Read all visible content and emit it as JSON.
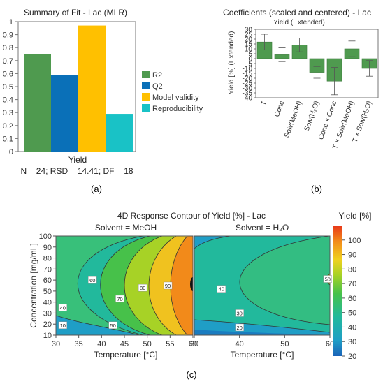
{
  "chart_data": [
    {
      "type": "bar",
      "title": "Summary of Fit - Lac (MLR)",
      "xlabel": "Yield",
      "ylim": [
        0,
        1
      ],
      "yticks": [
        "0",
        "0.1",
        "0.2",
        "0.3",
        "0.4",
        "0.5",
        "0.6",
        "0.7",
        "0.8",
        "0.9",
        "1"
      ],
      "categories": [
        "Yield"
      ],
      "series": [
        {
          "name": "R2",
          "values": [
            0.75
          ],
          "color": "#4f9a4f"
        },
        {
          "name": "Q2",
          "values": [
            0.59
          ],
          "color": "#0a70b8"
        },
        {
          "name": "Model validity",
          "values": [
            0.97
          ],
          "color": "#ffc000"
        },
        {
          "name": "Reproducibility",
          "values": [
            0.29
          ],
          "color": "#19c2c6"
        }
      ],
      "footnote": "N = 24; RSD = 14.41; DF = 18",
      "legend": "right",
      "panel_label": "(a)"
    },
    {
      "type": "bar",
      "title": "Coefficients (scaled and centered) - Lac",
      "subtitle": "Yield (Extended)",
      "ylabel": "Yield [%] (Extended)",
      "ylim": [
        -40,
        30
      ],
      "yticks": [
        "30",
        "25",
        "20",
        "15",
        "10",
        "5",
        "0",
        "-5",
        "-10",
        "-15",
        "-20",
        "-25",
        "-30",
        "-35",
        "-40"
      ],
      "categories": [
        "T",
        "Conc",
        "Solv(MeOH)",
        "Solv(H₂O)",
        "Conc × Conc",
        "T × Solv(MeOH)",
        "T × Solv(H₂O)"
      ],
      "values": [
        17,
        4,
        14,
        -14,
        -23,
        10,
        -10
      ],
      "errors": [
        8,
        7,
        7,
        6,
        14,
        8,
        8
      ],
      "color": "#4f9a4f",
      "panel_label": "(b)"
    },
    {
      "type": "heatmap",
      "title": "4D Response Contour of Yield [%] - Lac",
      "panels": [
        {
          "title": "Solvent = MeOH",
          "contour_labels": [
            {
              "value": "10",
              "x": 31.5,
              "y": 19
            },
            {
              "value": "40",
              "x": 31.5,
              "y": 35
            },
            {
              "value": "50",
              "x": 42.5,
              "y": 19
            },
            {
              "value": "60",
              "x": 38,
              "y": 60
            },
            {
              "value": "70",
              "x": 44,
              "y": 43
            },
            {
              "value": "80",
              "x": 49,
              "y": 53
            },
            {
              "value": "90",
              "x": 54.5,
              "y": 55
            }
          ]
        },
        {
          "title": "Solvent = H₂O",
          "contour_labels": [
            {
              "value": "20",
              "x": 40,
              "y": 17
            },
            {
              "value": "30",
              "x": 40,
              "y": 30
            },
            {
              "value": "40",
              "x": 36,
              "y": 52
            },
            {
              "value": "50",
              "x": 59.5,
              "y": 61
            }
          ]
        }
      ],
      "xlabel": "Temperature [°C]",
      "ylabel": "Concentration [mg/mL]",
      "xlim": [
        30,
        60
      ],
      "ylim": [
        10,
        100
      ],
      "xticks": [
        "30",
        "35",
        "40",
        "45",
        "50",
        "55",
        "60"
      ],
      "xticks_right": [
        "30",
        "40",
        "50",
        "60"
      ],
      "yticks": [
        "10",
        "20",
        "30",
        "40",
        "50",
        "60",
        "70",
        "80",
        "90",
        "100"
      ],
      "colorbar_label": "Yield [%]",
      "colorbar_range": [
        20,
        110
      ],
      "colorbar_ticks": [
        "100",
        "90",
        "80",
        "70",
        "60",
        "50",
        "40",
        "30",
        "20"
      ],
      "panel_label": "(c)"
    }
  ]
}
